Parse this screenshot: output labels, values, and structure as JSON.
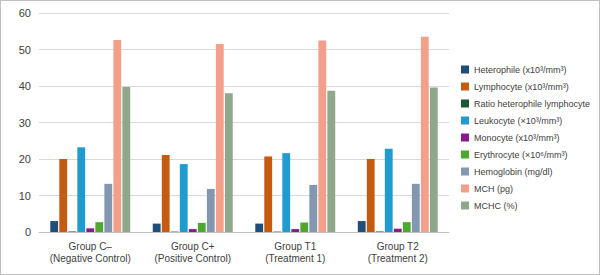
{
  "chart_data": {
    "type": "bar",
    "categories": [
      "Group C–\n(Negative Control)",
      "Group C+\n(Positive Control)",
      "Group T1\n(Treatment 1)",
      "Group T2\n(Treatment 2)"
    ],
    "series": [
      {
        "name": "Heterophile (x10³/mm³)",
        "color": "#1f4e79",
        "values": [
          3.0,
          2.3,
          2.3,
          3.0
        ]
      },
      {
        "name": "Lymphocyte (x10³/mm³)",
        "color": "#c55a11",
        "values": [
          20.0,
          21.1,
          20.7,
          20.0
        ]
      },
      {
        "name": "Ratio heterophile lymphocyte",
        "color": "#1e5631",
        "values": [
          0.15,
          0.11,
          0.11,
          0.15
        ]
      },
      {
        "name": "Leukocyte (×10³/mm³)",
        "color": "#1f9bd0",
        "values": [
          23.2,
          18.6,
          21.6,
          22.8
        ]
      },
      {
        "name": "Monocyte (x10³/mm³)",
        "color": "#8b1a8b",
        "values": [
          1.0,
          0.8,
          0.8,
          0.9
        ]
      },
      {
        "name": "Erythrocyte (×10⁶/mm³)",
        "color": "#4ea72e",
        "values": [
          2.7,
          2.5,
          2.6,
          2.7
        ]
      },
      {
        "name": "Hemoglobin (mg/dl)",
        "color": "#8497b0",
        "values": [
          13.2,
          11.8,
          12.9,
          13.2
        ]
      },
      {
        "name": "MCH (pg)",
        "color": "#f2a08a",
        "values": [
          52.6,
          51.5,
          52.5,
          53.5
        ]
      },
      {
        "name": "MCHC (%)",
        "color": "#8fa88c",
        "values": [
          39.7,
          38.0,
          38.7,
          39.6
        ]
      }
    ],
    "ylim": [
      0,
      60
    ],
    "yticks": [
      0,
      10,
      20,
      30,
      40,
      50,
      60
    ],
    "grid": true,
    "legend": "right"
  }
}
